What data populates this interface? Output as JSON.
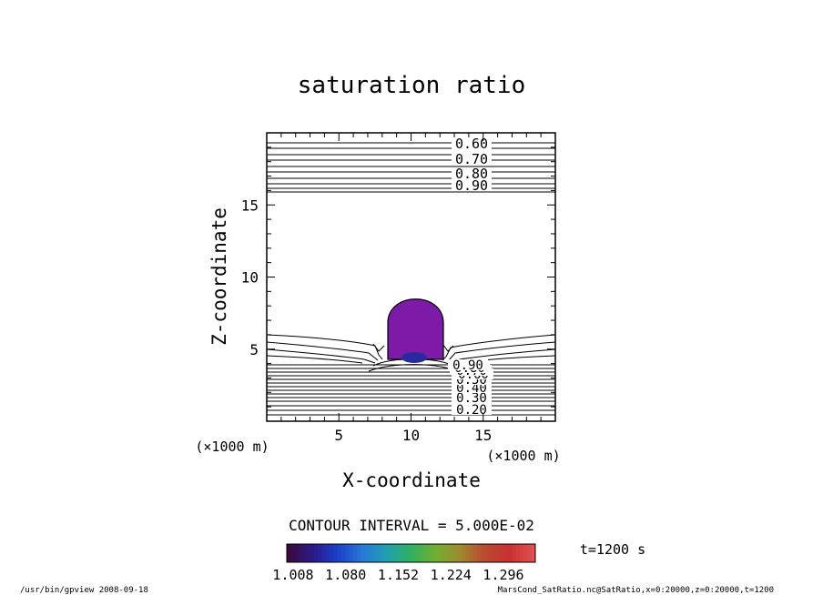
{
  "chart_data": {
    "type": "contour",
    "title": "saturation ratio",
    "xlabel": "X-coordinate",
    "ylabel": "Z-coordinate",
    "x_unit": "(×1000 m)",
    "y_unit": "(×1000 m)",
    "xlim": [
      0,
      20
    ],
    "ylim": [
      0,
      20
    ],
    "x_ticks": [
      5,
      10,
      15
    ],
    "y_ticks": [
      5,
      10,
      15
    ],
    "contour_interval_label": "CONTOUR INTERVAL = 5.000E-02",
    "time_label": "t=1200 s",
    "contour_labels_upper": [
      "0.60",
      "0.70",
      "0.80",
      "0.90"
    ],
    "contour_labels_lower": [
      "0.20",
      "0.30",
      "0.40",
      "0.50",
      "0.60",
      "0.70",
      "0.80",
      "0.90"
    ],
    "colorbar": {
      "tick_labels": [
        "1.008",
        "1.080",
        "1.152",
        "1.224",
        "1.296"
      ],
      "colors": [
        "#3a0a3c",
        "#2b1a8a",
        "#1a40c8",
        "#2878d8",
        "#20a0b0",
        "#30b060",
        "#70b030",
        "#a08a30",
        "#b84a30",
        "#c83030",
        "#e05050"
      ]
    },
    "cloud_color": "#7d1aa8",
    "footer_left": "/usr/bin/gpview   2008-09-18",
    "footer_right": "MarsCond_SatRatio.nc@SatRatio,x=0:20000,z=0:20000,t=1200"
  }
}
